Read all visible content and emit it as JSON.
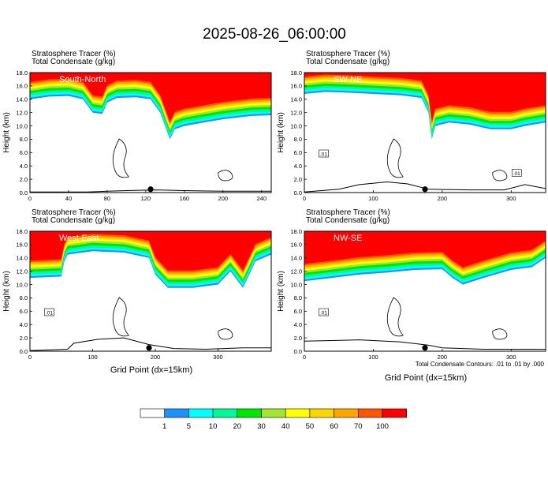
{
  "title": "2025-08-26_06:00:00",
  "panel_header": {
    "line1": "Stratosphere Tracer   (%)",
    "line2": "Total Condensate   (g/kg)"
  },
  "footer": {
    "contour_note": "Total Condensate Contours: .01 to .01 by .000",
    "grid_label": "Grid Point (dx=15km)"
  },
  "colors": {
    "fill": [
      "#ffffff",
      "#1e90ff",
      "#00ffff",
      "#00fa9a",
      "#00e600",
      "#a0e632",
      "#ffff00",
      "#ffd700",
      "#ffa500",
      "#ff5500",
      "#ff0000"
    ],
    "contour": "#000000",
    "terrain": "#000000"
  },
  "colorbar": {
    "labels": [
      "1",
      "5",
      "10",
      "20",
      "30",
      "40",
      "50",
      "60",
      "70",
      "100"
    ]
  },
  "chart_data": [
    {
      "type": "heatmap",
      "name": "South-North",
      "ylabel": "Height (km)",
      "ylim": [
        0,
        18
      ],
      "xlim": [
        0,
        250
      ],
      "xticks": [
        "0",
        "40",
        "80",
        "120",
        "160",
        "200",
        "240"
      ],
      "yticks": [
        "0.0",
        "2.0",
        "4.0",
        "6.0",
        "8.0",
        "10.0",
        "12.0",
        "14.0",
        "16.0",
        "18.0"
      ],
      "tropopause_km": [
        [
          0,
          14.0
        ],
        [
          20,
          14.4
        ],
        [
          40,
          14.5
        ],
        [
          55,
          14.0
        ],
        [
          65,
          12.0
        ],
        [
          75,
          11.8
        ],
        [
          80,
          13.5
        ],
        [
          90,
          14.2
        ],
        [
          110,
          14.3
        ],
        [
          125,
          14.0
        ],
        [
          135,
          12.0
        ],
        [
          140,
          10.0
        ],
        [
          145,
          8.0
        ],
        [
          150,
          9.5
        ],
        [
          160,
          10.0
        ],
        [
          180,
          10.5
        ],
        [
          200,
          11.0
        ],
        [
          230,
          11.5
        ],
        [
          250,
          11.6
        ]
      ],
      "terrain_km": [
        [
          0,
          0.1
        ],
        [
          60,
          0.1
        ],
        [
          80,
          0.2
        ],
        [
          100,
          0.3
        ],
        [
          130,
          0.4
        ],
        [
          160,
          0.3
        ],
        [
          200,
          0.2
        ],
        [
          250,
          0.2
        ]
      ],
      "marker_x": 125,
      "contour_labels": []
    },
    {
      "type": "heatmap",
      "name": "SW-NE",
      "ylabel": "Height (km)",
      "ylim": [
        0,
        18
      ],
      "xlim": [
        0,
        350
      ],
      "xticks": [
        "0",
        "100",
        "200",
        "300"
      ],
      "yticks": [
        "0.0",
        "2.0",
        "4.0",
        "6.0",
        "8.0",
        "10.0",
        "12.0",
        "14.0",
        "16.0",
        "18.0"
      ],
      "tropopause_km": [
        [
          0,
          14.8
        ],
        [
          30,
          15.1
        ],
        [
          60,
          15.0
        ],
        [
          100,
          14.8
        ],
        [
          140,
          14.6
        ],
        [
          170,
          14.2
        ],
        [
          180,
          12.0
        ],
        [
          185,
          8.0
        ],
        [
          190,
          10.0
        ],
        [
          210,
          10.5
        ],
        [
          240,
          10.2
        ],
        [
          270,
          9.5
        ],
        [
          300,
          9.5
        ],
        [
          320,
          10.0
        ],
        [
          350,
          10.5
        ]
      ],
      "terrain_km": [
        [
          0,
          0.1
        ],
        [
          50,
          0.5
        ],
        [
          80,
          1.2
        ],
        [
          120,
          1.6
        ],
        [
          150,
          1.3
        ],
        [
          180,
          0.5
        ],
        [
          240,
          0.4
        ],
        [
          290,
          0.4
        ],
        [
          320,
          1.2
        ],
        [
          350,
          0.6
        ]
      ],
      "marker_x": 175,
      "contour_labels": [
        ".01",
        ".01"
      ]
    },
    {
      "type": "heatmap",
      "name": "West-East",
      "ylabel": "Height (km)",
      "ylim": [
        0,
        18
      ],
      "xlim": [
        0,
        385
      ],
      "xticks": [
        "0",
        "100",
        "200",
        "300"
      ],
      "yticks": [
        "0.0",
        "2.0",
        "4.0",
        "6.0",
        "8.0",
        "10.0",
        "12.0",
        "14.0",
        "16.0",
        "18.0"
      ],
      "tropopause_km": [
        [
          0,
          11.0
        ],
        [
          50,
          11.2
        ],
        [
          55,
          13.5
        ],
        [
          60,
          14.5
        ],
        [
          100,
          15.0
        ],
        [
          150,
          14.8
        ],
        [
          190,
          14.0
        ],
        [
          200,
          11.5
        ],
        [
          220,
          9.5
        ],
        [
          260,
          9.5
        ],
        [
          300,
          10.0
        ],
        [
          320,
          12.0
        ],
        [
          340,
          9.5
        ],
        [
          360,
          13.5
        ],
        [
          385,
          14.5
        ]
      ],
      "terrain_km": [
        [
          0,
          0.1
        ],
        [
          60,
          0.3
        ],
        [
          70,
          1.2
        ],
        [
          110,
          1.8
        ],
        [
          150,
          2.0
        ],
        [
          190,
          1.0
        ],
        [
          230,
          0.4
        ],
        [
          280,
          0.3
        ],
        [
          340,
          0.5
        ],
        [
          385,
          0.5
        ]
      ],
      "marker_x": 190,
      "contour_labels": [
        ".01"
      ]
    },
    {
      "type": "heatmap",
      "name": "NW-SE",
      "ylabel": "Height (km)",
      "ylim": [
        0,
        18
      ],
      "xlim": [
        0,
        350
      ],
      "xticks": [
        "0",
        "100",
        "200",
        "300"
      ],
      "yticks": [
        "0.0",
        "2.0",
        "4.0",
        "6.0",
        "8.0",
        "10.0",
        "12.0",
        "14.0",
        "16.0",
        "18.0"
      ],
      "tropopause_km": [
        [
          0,
          10.5
        ],
        [
          40,
          11.0
        ],
        [
          80,
          11.5
        ],
        [
          120,
          11.8
        ],
        [
          160,
          12.2
        ],
        [
          200,
          12.3
        ],
        [
          215,
          11.0
        ],
        [
          230,
          10.0
        ],
        [
          260,
          11.0
        ],
        [
          300,
          12.2
        ],
        [
          330,
          12.6
        ],
        [
          350,
          14.0
        ]
      ],
      "terrain_km": [
        [
          0,
          1.5
        ],
        [
          40,
          1.6
        ],
        [
          80,
          1.7
        ],
        [
          140,
          1.4
        ],
        [
          180,
          0.9
        ],
        [
          200,
          0.5
        ],
        [
          260,
          0.3
        ],
        [
          350,
          0.3
        ]
      ],
      "marker_x": 175,
      "contour_labels": [
        ".01"
      ]
    }
  ]
}
